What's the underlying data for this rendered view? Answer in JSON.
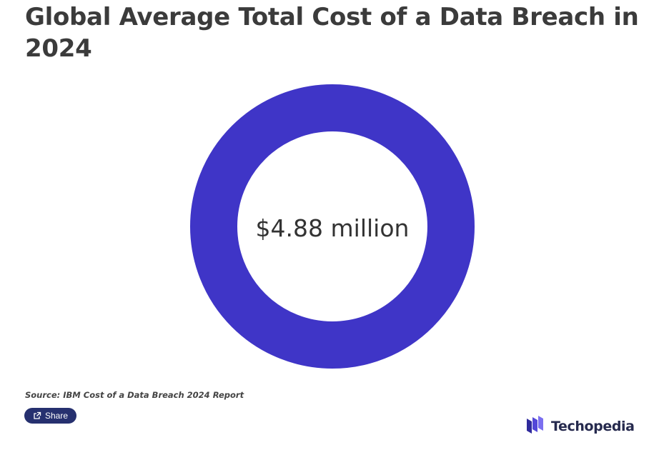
{
  "title": "Global Average Total Cost of a Data Breach in 2024",
  "source": "Source: IBM Cost of a Data Breach 2024 Report",
  "share": {
    "label": "Share",
    "icon": "share-icon"
  },
  "logo": {
    "text": "Techopedia",
    "icon": "techopedia-logo-icon"
  },
  "colors": {
    "ring": "#3f35c7",
    "share_button": "#26306f",
    "logo_dark": "#2f2a9c",
    "logo_light": "#7b6ff0"
  },
  "chart_data": {
    "type": "pie",
    "center_label": "$4.88 million",
    "slices": [
      {
        "value": 4.88,
        "color": "#3f35c7"
      }
    ]
  }
}
